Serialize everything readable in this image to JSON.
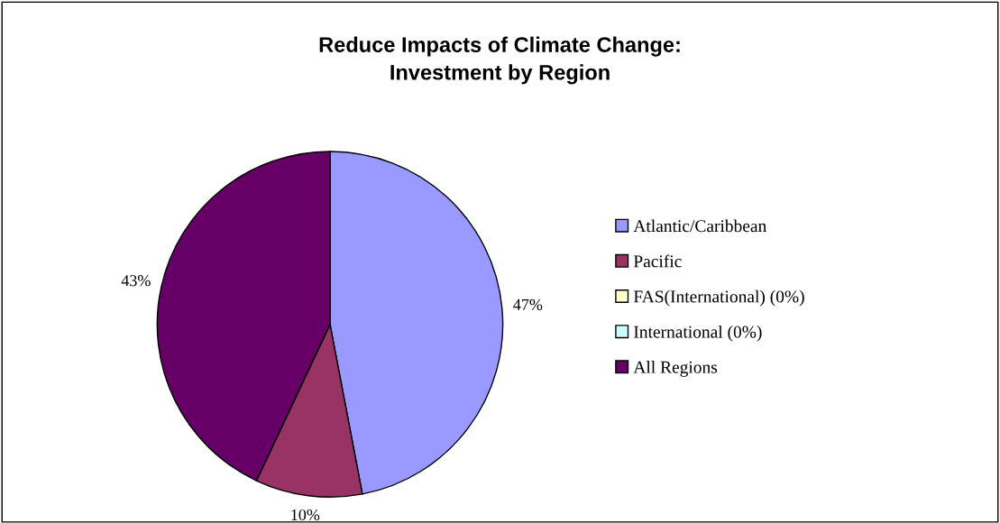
{
  "chart_data": {
    "type": "pie",
    "title": "Reduce Impacts of Climate Change:\nInvestment by Region",
    "categories": [
      "Atlantic/Caribbean",
      "Pacific",
      "FAS(International) (0%)",
      "International (0%)",
      "All Regions"
    ],
    "values": [
      47,
      10,
      0,
      0,
      43
    ],
    "colors": [
      "#9999ff",
      "#993366",
      "#ffffcc",
      "#ccffff",
      "#660066"
    ],
    "value_labels": [
      "47%",
      "10%",
      null,
      null,
      "43%"
    ],
    "legend": "right"
  }
}
